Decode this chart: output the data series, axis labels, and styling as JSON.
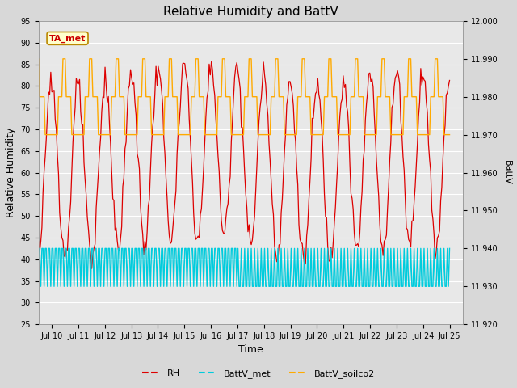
{
  "title": "Relative Humidity and BattV",
  "xlabel": "Time",
  "ylabel_left": "Relative Humidity",
  "ylabel_right": "BattV",
  "ylim_left": [
    25,
    95
  ],
  "ylim_right": [
    11.92,
    12.0
  ],
  "yticks_left": [
    25,
    30,
    35,
    40,
    45,
    50,
    55,
    60,
    65,
    70,
    75,
    80,
    85,
    90,
    95
  ],
  "yticks_right": [
    11.92,
    11.93,
    11.94,
    11.95,
    11.96,
    11.97,
    11.98,
    11.99,
    12.0
  ],
  "xtick_labels": [
    "Jul 10",
    "Jul 11",
    "Jul 12",
    "Jul 13",
    "Jul 14",
    "Jul 15",
    "Jul 16",
    "Jul 17",
    "Jul 18",
    "Jul 19",
    "Jul 20",
    "Jul 21",
    "Jul 22",
    "Jul 23",
    "Jul 24",
    "Jul 25"
  ],
  "annotation_text": "TA_met",
  "annotation_color": "#cc0000",
  "annotation_bg": "#ffffcc",
  "annotation_border": "#bb8800",
  "rh_color": "#dd0000",
  "battv_met_color": "#00ccdd",
  "battv_soilco2_color": "#ffaa00",
  "bg_color": "#d8d8d8",
  "plot_bg_color": "#e8e8e8",
  "grid_color": "#ffffff",
  "figsize": [
    6.4,
    4.8
  ],
  "dpi": 100
}
